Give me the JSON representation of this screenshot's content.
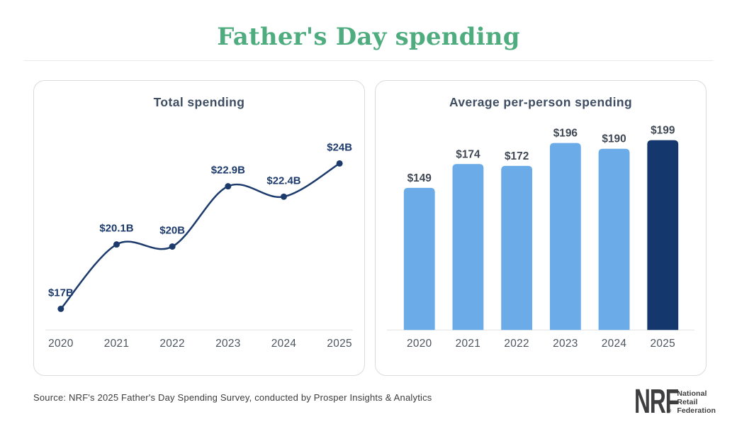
{
  "page_title": "Father's Day spending",
  "chart_data": [
    {
      "type": "line",
      "title": "Total spending",
      "categories": [
        "2020",
        "2021",
        "2022",
        "2023",
        "2024",
        "2025"
      ],
      "values": [
        17,
        20.1,
        20,
        22.9,
        22.4,
        24
      ],
      "point_labels": [
        "$17B",
        "$20.1B",
        "$20B",
        "$22.9B",
        "$22.4B",
        "$24B"
      ],
      "unit": "billions of USD",
      "y_axis_visible": false,
      "grid": false,
      "legend": "none",
      "ylim": [
        17,
        24
      ]
    },
    {
      "type": "bar",
      "title": "Average per-person spending",
      "categories": [
        "2020",
        "2021",
        "2022",
        "2023",
        "2024",
        "2025"
      ],
      "values": [
        149,
        174,
        172,
        196,
        190,
        199
      ],
      "bar_labels": [
        "$149",
        "$174",
        "$172",
        "$196",
        "$190",
        "$199"
      ],
      "unit": "USD",
      "highlight_index": 5,
      "y_axis_visible": false,
      "grid": false,
      "legend": "none",
      "ylim": [
        0,
        199
      ]
    }
  ],
  "footer": {
    "source_note": "Source: NRF's 2025 Father's Day Spending Survey, conducted by Prosper Insights & Analytics",
    "logo": {
      "acronym": "NRF",
      "reg_mark": "®",
      "org_lines": [
        "National",
        "Retail",
        "Federation"
      ]
    }
  },
  "colors": {
    "accent_green": "#4FAC7F",
    "line_navy": "#1C3A6B",
    "bar_light_blue": "#6AABE8",
    "bar_dark_navy": "#14376E",
    "panel_title": "#3E4D62",
    "axis_label": "#4D565F",
    "value_label": "#3F4854",
    "panel_border": "#DBDBDB",
    "axis_line": "#E3E3E3"
  }
}
